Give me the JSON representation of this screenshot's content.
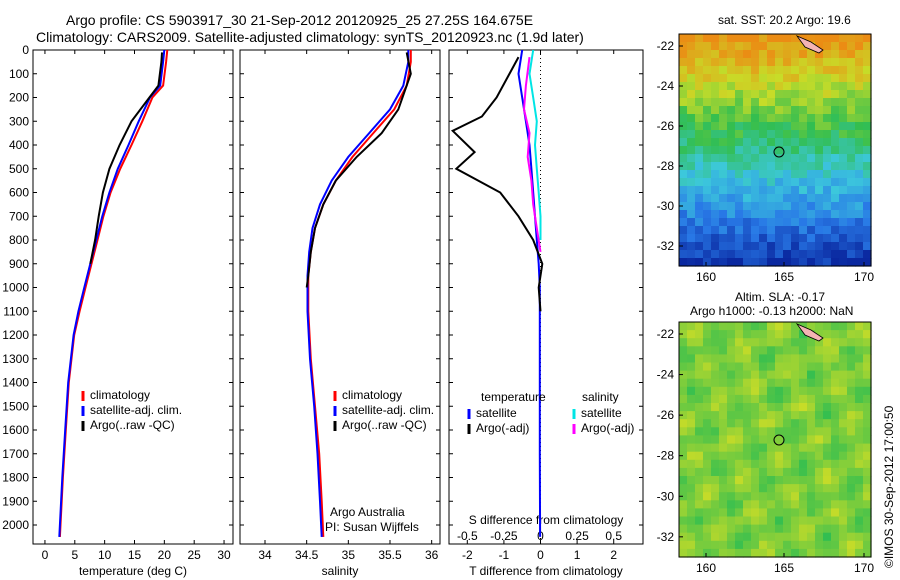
{
  "title_line1": "Argo profile: CS 5903917_30 21-Sep-2012 20120925_25 27.25S 164.675E",
  "title_line2": "Climatology: CARS2009. Satellite-adjusted climatology: synTS_20120923.nc (1.9d later)",
  "map_sst_title": "sat. SST: 20.2 Argo: 19.6",
  "map_sla_title1": "Altim. SLA: -0.17",
  "map_sla_title2": "Argo h1000: -0.13 h2000: NaN",
  "side_stamp": "©IMOS 30-Sep-2012 17:00:50",
  "credit_line1": "Argo Australia",
  "credit_line2": "PI: Susan Wijffels",
  "colors": {
    "climatology": "#ff0000",
    "satellite": "#0000ff",
    "argo": "#000000",
    "sal_satellite": "#00e5e5",
    "sal_argo": "#ff00ff"
  },
  "chart_data": [
    {
      "type": "line",
      "id": "temperature",
      "xlabel": "temperature (deg C)",
      "ylabel": "",
      "xlim": [
        -2,
        31.5
      ],
      "ylim": [
        0,
        2080
      ],
      "xticks": [
        0,
        5,
        10,
        15,
        20,
        25,
        30
      ],
      "yticks": [
        0,
        100,
        200,
        300,
        400,
        500,
        600,
        700,
        800,
        900,
        1000,
        1100,
        1200,
        1300,
        1400,
        1500,
        1600,
        1700,
        1800,
        1900,
        2000
      ],
      "y_reversed": true,
      "legend": [
        "climatology",
        "satellite-adj. clim.",
        "Argo(..raw -QC)"
      ],
      "series": [
        {
          "name": "climatology",
          "color": "#ff0000",
          "x": [
            20.5,
            20.3,
            19.8,
            18.0,
            16.3,
            14.5,
            12.6,
            11.0,
            9.8,
            8.8,
            7.8,
            6.8,
            5.8,
            4.9,
            4.0,
            3.5,
            3.0,
            2.8,
            2.6,
            2.5
          ],
          "y": [
            0,
            50,
            150,
            200,
            300,
            400,
            500,
            600,
            700,
            800,
            900,
            1000,
            1100,
            1200,
            1400,
            1600,
            1800,
            1900,
            2000,
            2050
          ]
        },
        {
          "name": "satellite-adj. clim.",
          "color": "#0000ff",
          "x": [
            20.0,
            19.8,
            19.3,
            17.6,
            15.7,
            14.0,
            12.2,
            10.8,
            9.6,
            8.6,
            7.6,
            6.6,
            5.6,
            4.8,
            3.9,
            3.4,
            2.9,
            2.7,
            2.5,
            2.4
          ],
          "y": [
            0,
            50,
            150,
            200,
            300,
            400,
            500,
            600,
            700,
            800,
            900,
            1000,
            1100,
            1200,
            1400,
            1600,
            1800,
            1900,
            2000,
            2050
          ]
        },
        {
          "name": "Argo(..raw -QC)",
          "color": "#000000",
          "x": [
            19.6,
            19.5,
            19.0,
            17.5,
            14.5,
            12.5,
            10.8,
            9.7,
            9.0,
            8.4,
            7.6
          ],
          "y": [
            10,
            50,
            150,
            200,
            300,
            400,
            500,
            600,
            700,
            800,
            900
          ]
        }
      ]
    },
    {
      "type": "line",
      "id": "salinity",
      "xlabel": "salinity",
      "ylabel": "",
      "xlim": [
        33.7,
        36.1
      ],
      "ylim": [
        0,
        2080
      ],
      "xticks": [
        34,
        34.5,
        35,
        35.5,
        36
      ],
      "y_reversed": true,
      "legend": [
        "climatology",
        "satellite-adj. clim.",
        "Argo(..raw -QC)"
      ],
      "series": [
        {
          "name": "climatology",
          "color": "#ff0000",
          "x": [
            35.75,
            35.75,
            35.7,
            35.55,
            35.3,
            35.05,
            34.85,
            34.7,
            34.6,
            34.55,
            34.52,
            34.52,
            34.55,
            34.6,
            34.65,
            34.68,
            34.7
          ],
          "y": [
            0,
            50,
            150,
            250,
            350,
            450,
            550,
            650,
            750,
            850,
            950,
            1100,
            1300,
            1500,
            1700,
            1900,
            2050
          ]
        },
        {
          "name": "satellite-adj. clim.",
          "color": "#0000ff",
          "x": [
            35.72,
            35.72,
            35.66,
            35.5,
            35.25,
            35.0,
            34.8,
            34.66,
            34.57,
            34.53,
            34.51,
            34.51,
            34.54,
            34.59,
            34.63,
            34.66,
            34.68
          ],
          "y": [
            0,
            50,
            150,
            250,
            350,
            450,
            550,
            650,
            750,
            850,
            950,
            1100,
            1300,
            1500,
            1700,
            1900,
            2050
          ]
        },
        {
          "name": "Argo(..raw -QC)",
          "color": "#000000",
          "x": [
            35.7,
            35.75,
            35.6,
            35.4,
            35.1,
            34.85,
            34.7,
            34.6,
            34.55,
            34.52,
            34.5
          ],
          "y": [
            10,
            100,
            250,
            350,
            450,
            550,
            650,
            750,
            850,
            950,
            1000
          ]
        }
      ]
    },
    {
      "type": "line",
      "id": "difference",
      "xlabel": "T difference from climatology",
      "xlabel_top": "S difference from climatology",
      "xlim": [
        -2.5,
        2.8
      ],
      "ylim": [
        0,
        2080
      ],
      "xticks": [
        -2,
        -1,
        0,
        1,
        2
      ],
      "s_ticks": [
        "-0.5",
        "-0.25",
        "0",
        "0.25",
        "0.5"
      ],
      "y_reversed": true,
      "legend_groups": [
        "temperature",
        "salinity"
      ],
      "legend": [
        "satellite",
        "Argo(-adj)",
        "satellite",
        "Argo(-adj)"
      ],
      "series": [
        {
          "name": "satellite",
          "color": "#0000ff",
          "x": [
            -0.5,
            -0.6,
            -0.5,
            -0.4,
            -0.3,
            -0.25,
            -0.2,
            -0.15,
            -0.1,
            -0.05,
            -0.02,
            -0.02,
            -0.02,
            -0.01
          ],
          "y": [
            0,
            100,
            200,
            300,
            400,
            500,
            600,
            700,
            800,
            900,
            1000,
            1300,
            1700,
            2050
          ]
        },
        {
          "name": "Argo(-adj)",
          "color": "#000000",
          "x": [
            -0.6,
            -1.2,
            -1.6,
            -2.4,
            -1.8,
            -2.3,
            -1.1,
            -0.6,
            -0.2,
            0.05,
            -0.05,
            0.0
          ],
          "y": [
            30,
            200,
            280,
            340,
            430,
            500,
            600,
            700,
            800,
            900,
            1000,
            1100
          ]
        },
        {
          "name": "satellite",
          "color": "#00e5e5",
          "x": [
            -0.2,
            -0.3,
            -0.2,
            -0.1,
            -0.15,
            -0.1,
            -0.05,
            0.0,
            0.0
          ],
          "y": [
            0,
            100,
            200,
            300,
            400,
            500,
            600,
            700,
            800
          ]
        },
        {
          "name": "Argo(-adj)",
          "color": "#ff00ff",
          "x": [
            -0.3,
            -0.4,
            -0.45,
            -0.3,
            -0.35,
            -0.25,
            -0.2,
            -0.1,
            0.0
          ],
          "y": [
            30,
            150,
            250,
            350,
            450,
            550,
            650,
            750,
            850
          ]
        }
      ]
    }
  ],
  "maps": [
    {
      "id": "sst",
      "xticks": [
        "160",
        "165",
        "170"
      ],
      "yticks": [
        "-22",
        "-24",
        "-26",
        "-28",
        "-30",
        "-32"
      ]
    },
    {
      "id": "sla",
      "xticks": [
        "160",
        "165",
        "170"
      ],
      "yticks": [
        "-22",
        "-24",
        "-26",
        "-28",
        "-30",
        "-32"
      ]
    }
  ]
}
